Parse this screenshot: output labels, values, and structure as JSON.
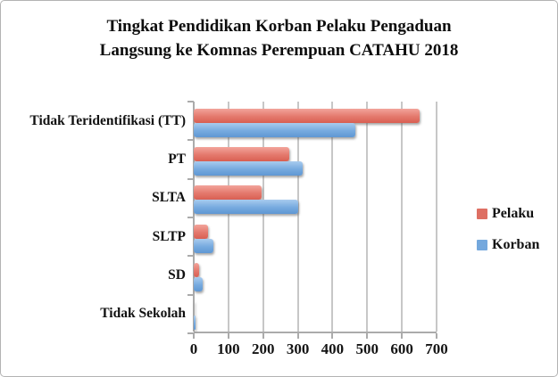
{
  "title": {
    "line1": "Tingkat Pendidikan Korban Pelaku Pengaduan",
    "line2": "Langsung ke Komnas Perempuan CATAHU 2018"
  },
  "legend": {
    "items": [
      {
        "label": "Pelaku",
        "color": "#de6f63"
      },
      {
        "label": "Korban",
        "color": "#74a8dd"
      }
    ]
  },
  "chart_data": {
    "type": "bar",
    "orientation": "horizontal",
    "title": "Tingkat Pendidikan Korban Pelaku Pengaduan Langsung ke Komnas Perempuan CATAHU 2018",
    "categories": [
      "Tidak Teridentifikasi (TT)",
      "PT",
      "SLTA",
      "SLTP",
      "SD",
      "Tidak Sekolah"
    ],
    "series": [
      {
        "name": "Pelaku",
        "color": "#de6f63",
        "values": [
          650,
          275,
          195,
          40,
          16,
          1
        ]
      },
      {
        "name": "Korban",
        "color": "#74a8dd",
        "values": [
          465,
          315,
          300,
          57,
          26,
          5
        ]
      }
    ],
    "xlabel": "",
    "ylabel": "",
    "xlim": [
      0,
      700
    ],
    "x_ticks": [
      0,
      100,
      200,
      300,
      400,
      500,
      600,
      700
    ],
    "grid": true,
    "legend_position": "right"
  }
}
